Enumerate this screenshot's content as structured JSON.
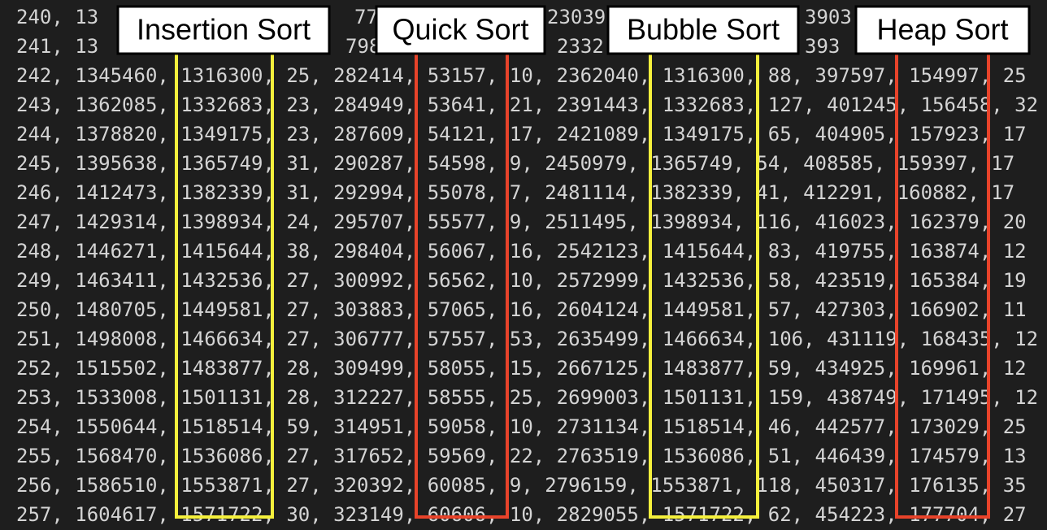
{
  "partial_lines": [
    [
      "240, 13",
      "77",
      "23039",
      "3903"
    ],
    [
      "241, 13",
      "798",
      "2332",
      "393"
    ]
  ],
  "lines": [
    "242, 1345460, 1316300, 25, 282414, 53157, 10, 2362040, 1316300, 88, 397597, 154997, 25",
    "243, 1362085, 1332683, 23, 284949, 53641, 21, 2391443, 1332683, 127, 401245, 156458, 32",
    "244, 1378820, 1349175, 23, 287609, 54121, 17, 2421089, 1349175, 65, 404905, 157923, 17",
    "245, 1395638, 1365749, 31, 290287, 54598, 9, 2450979, 1365749, 54, 408585, 159397, 17",
    "246, 1412473, 1382339, 31, 292994, 55078, 7, 2481114, 1382339, 41, 412291, 160882, 17",
    "247, 1429314, 1398934, 24, 295707, 55577, 9, 2511495, 1398934, 116, 416023, 162379, 20",
    "248, 1446271, 1415644, 38, 298404, 56067, 16, 2542123, 1415644, 83, 419755, 163874, 12",
    "249, 1463411, 1432536, 27, 300992, 56562, 10, 2572999, 1432536, 58, 423519, 165384, 19",
    "250, 1480705, 1449581, 27, 303883, 57065, 16, 2604124, 1449581, 57, 427303, 166902, 11",
    "251, 1498008, 1466634, 27, 306777, 57557, 53, 2635499, 1466634, 106, 431119, 168435, 12",
    "252, 1515502, 1483877, 28, 309499, 58055, 15, 2667125, 1483877, 59, 434925, 169961, 12",
    "253, 1533008, 1501131, 28, 312227, 58555, 25, 2699003, 1501131, 159, 438749, 171495, 12",
    "254, 1550644, 1518514, 59, 314951, 59058, 10, 2731134, 1518514, 46, 442577, 173029, 25",
    "255, 1568470, 1536086, 27, 317652, 59569, 22, 2763519, 1536086, 51, 446439, 174579, 13",
    "256, 1586510, 1553871, 27, 320392, 60085, 9, 2796159, 1553871, 118, 450317, 176135, 35",
    "257, 1604617, 1571722, 30, 323149, 60606, 10, 2829055, 1571722, 62, 454223, 177704, 27"
  ],
  "labels": [
    "Insertion Sort",
    "Quick Sort",
    "Bubble Sort",
    "Heap Sort"
  ]
}
